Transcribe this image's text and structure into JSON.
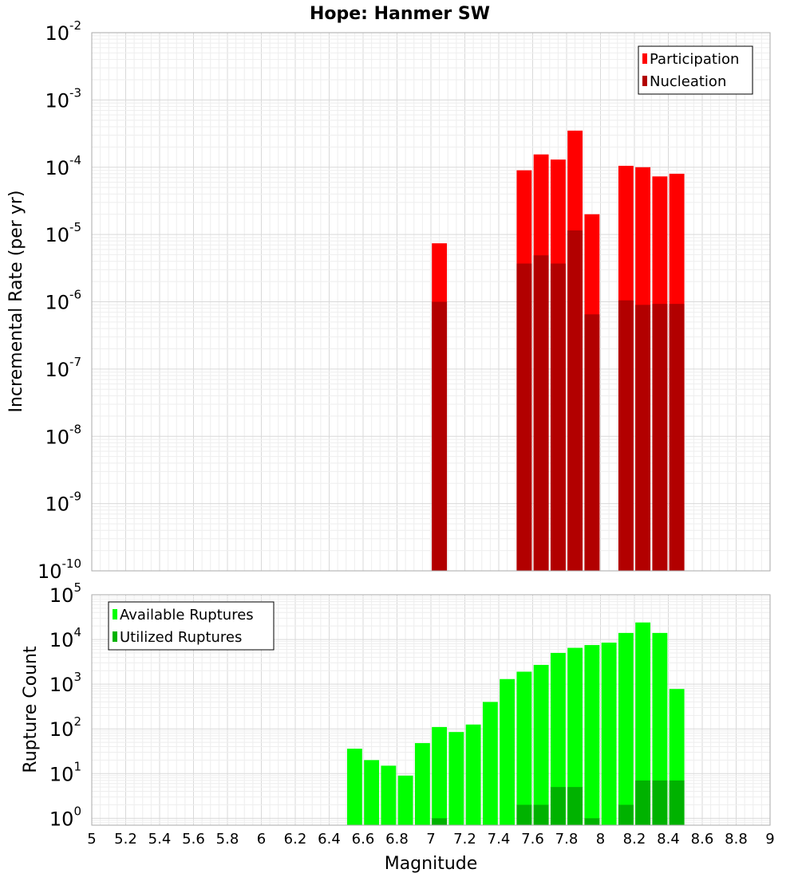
{
  "title": "Hope: Hanmer SW",
  "colors": {
    "participation": "#ff0000",
    "nucleation": "#b20000",
    "available": "#00ff00",
    "utilized": "#00b200",
    "grid_major": "#d9d9d9",
    "grid_minor": "#eeeeee",
    "frame": "#aaaaaa"
  },
  "chart_data": [
    {
      "type": "bar",
      "panel": "top",
      "xlabel": "Magnitude",
      "ylabel": "Incremental Rate (per yr)",
      "xlim": [
        5,
        9
      ],
      "ylim": [
        1e-10,
        0.01
      ],
      "yscale": "log",
      "grid": true,
      "legend_position": "top-right",
      "bin_width": 0.1,
      "series": [
        {
          "name": "Participation",
          "color_key": "participation",
          "points": [
            {
              "x": 7.05,
              "y": 7.4e-06
            },
            {
              "x": 7.55,
              "y": 9e-05
            },
            {
              "x": 7.65,
              "y": 0.000155
            },
            {
              "x": 7.75,
              "y": 0.00013
            },
            {
              "x": 7.85,
              "y": 0.00035
            },
            {
              "x": 7.95,
              "y": 2e-05
            },
            {
              "x": 8.15,
              "y": 0.000105
            },
            {
              "x": 8.25,
              "y": 0.0001
            },
            {
              "x": 8.35,
              "y": 7.3e-05
            },
            {
              "x": 8.45,
              "y": 8e-05
            }
          ]
        },
        {
          "name": "Nucleation",
          "color_key": "nucleation",
          "points": [
            {
              "x": 7.05,
              "y": 1e-06
            },
            {
              "x": 7.55,
              "y": 3.7e-06
            },
            {
              "x": 7.65,
              "y": 4.9e-06
            },
            {
              "x": 7.75,
              "y": 3.7e-06
            },
            {
              "x": 7.85,
              "y": 1.15e-05
            },
            {
              "x": 7.95,
              "y": 6.5e-07
            },
            {
              "x": 8.15,
              "y": 1.05e-06
            },
            {
              "x": 8.25,
              "y": 9e-07
            },
            {
              "x": 8.35,
              "y": 9.3e-07
            },
            {
              "x": 8.45,
              "y": 9.3e-07
            }
          ]
        }
      ],
      "yticks": [
        {
          "base": "10",
          "exp": "-10"
        },
        {
          "base": "10",
          "exp": "-9"
        },
        {
          "base": "10",
          "exp": "-8"
        },
        {
          "base": "10",
          "exp": "-7"
        },
        {
          "base": "10",
          "exp": "-6"
        },
        {
          "base": "10",
          "exp": "-5"
        },
        {
          "base": "10",
          "exp": "-4"
        },
        {
          "base": "10",
          "exp": "-3"
        },
        {
          "base": "10",
          "exp": "-2"
        }
      ]
    },
    {
      "type": "bar",
      "panel": "bottom",
      "xlabel": "Magnitude",
      "ylabel": "Rupture Count",
      "xlim": [
        5,
        9
      ],
      "ylim": [
        0.7,
        100000.0
      ],
      "yscale": "log",
      "grid": true,
      "legend_position": "top-left",
      "bin_width": 0.1,
      "series": [
        {
          "name": "Available Ruptures",
          "color_key": "available",
          "points": [
            {
              "x": 6.55,
              "y": 36
            },
            {
              "x": 6.65,
              "y": 20
            },
            {
              "x": 6.75,
              "y": 15
            },
            {
              "x": 6.85,
              "y": 9
            },
            {
              "x": 6.95,
              "y": 48
            },
            {
              "x": 7.05,
              "y": 110
            },
            {
              "x": 7.15,
              "y": 85
            },
            {
              "x": 7.25,
              "y": 125
            },
            {
              "x": 7.35,
              "y": 400
            },
            {
              "x": 7.45,
              "y": 1300
            },
            {
              "x": 7.55,
              "y": 1900
            },
            {
              "x": 7.65,
              "y": 2700
            },
            {
              "x": 7.75,
              "y": 5000
            },
            {
              "x": 7.85,
              "y": 6500
            },
            {
              "x": 7.95,
              "y": 7500
            },
            {
              "x": 8.05,
              "y": 8500
            },
            {
              "x": 8.15,
              "y": 14000
            },
            {
              "x": 8.25,
              "y": 24000
            },
            {
              "x": 8.35,
              "y": 14000
            },
            {
              "x": 8.45,
              "y": 780
            }
          ]
        },
        {
          "name": "Utilized Ruptures",
          "color_key": "utilized",
          "points": [
            {
              "x": 7.05,
              "y": 1
            },
            {
              "x": 7.55,
              "y": 2
            },
            {
              "x": 7.65,
              "y": 2
            },
            {
              "x": 7.75,
              "y": 5
            },
            {
              "x": 7.85,
              "y": 5
            },
            {
              "x": 7.95,
              "y": 1
            },
            {
              "x": 8.15,
              "y": 2
            },
            {
              "x": 8.25,
              "y": 7
            },
            {
              "x": 8.35,
              "y": 7
            },
            {
              "x": 8.45,
              "y": 7
            }
          ]
        }
      ],
      "yticks": [
        {
          "base": "10",
          "exp": "0"
        },
        {
          "base": "10",
          "exp": "1"
        },
        {
          "base": "10",
          "exp": "2"
        },
        {
          "base": "10",
          "exp": "3"
        },
        {
          "base": "10",
          "exp": "4"
        },
        {
          "base": "10",
          "exp": "5"
        }
      ]
    }
  ],
  "xticks": [
    "5",
    "5.2",
    "5.4",
    "5.6",
    "5.8",
    "6",
    "6.2",
    "6.4",
    "6.6",
    "6.8",
    "7",
    "7.2",
    "7.4",
    "7.6",
    "7.8",
    "8",
    "8.2",
    "8.4",
    "8.6",
    "8.8",
    "9"
  ]
}
